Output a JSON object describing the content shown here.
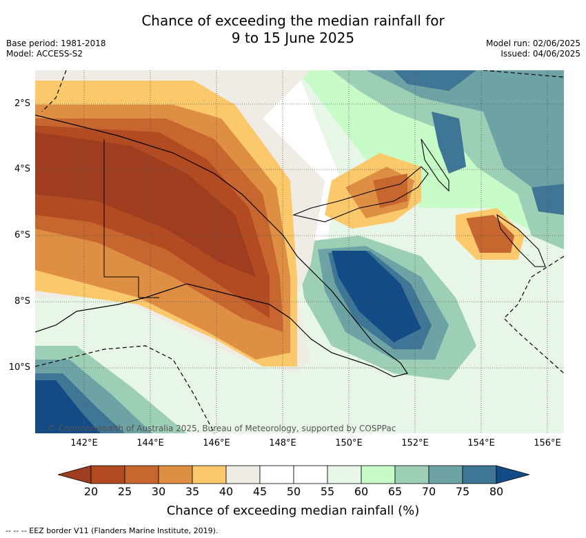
{
  "title_line1": "Chance of exceeding the median rainfall for",
  "title_line2": "9 to 15 June 2025",
  "base_period": "Base period: 1981-2018",
  "model": "Model: ACCESS-S2",
  "model_run": "Model run: 02/06/2025",
  "issued": "Issued: 04/06/2025",
  "lat_labels": [
    "2°S",
    "4°S",
    "6°S",
    "8°S",
    "10°S"
  ],
  "lon_labels": [
    "142°E",
    "144°E",
    "146°E",
    "148°E",
    "150°E",
    "152°E",
    "154°E",
    "156°E"
  ],
  "copyright": "© Commonwealth of Australia 2025, Bureau of Meteorology, supported by COSPPac",
  "colorbar": {
    "ticks": [
      "20",
      "25",
      "30",
      "35",
      "40",
      "45",
      "50",
      "55",
      "60",
      "65",
      "70",
      "75",
      "80"
    ],
    "colors": [
      "#9e3d1f",
      "#b24a22",
      "#c8662f",
      "#df8f43",
      "#fbc96b",
      "#efece6",
      "#ffffff",
      "#ffffff",
      "#e7f6e6",
      "#c7fbc7",
      "#9ccfb5",
      "#6ea3a5",
      "#3f7595",
      "#124b86"
    ],
    "label": "Chance of exceeding median rainfall (%)"
  },
  "footnote": "--  --  -- EEZ border V11 (Flanders Marine Institute, 2019)."
}
